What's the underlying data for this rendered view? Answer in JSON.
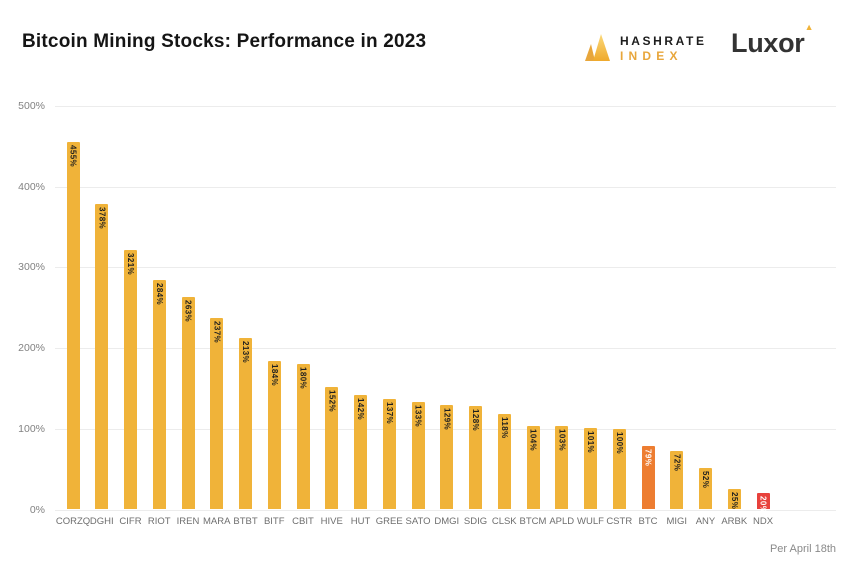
{
  "header": {
    "title": "Bitcoin Mining Stocks: Performance in 2023",
    "hashrate_logo": {
      "line1": "HASHRATE",
      "line2": "INDEX"
    },
    "luxor_logo": {
      "text": "Luxor",
      "triangle": "▲"
    }
  },
  "footer": {
    "note": "Per April 18th"
  },
  "chart_data": {
    "type": "bar",
    "title": "Bitcoin Mining Stocks: Performance in 2023",
    "categories": [
      "CORZQ",
      "DGHI",
      "CIFR",
      "RIOT",
      "IREN",
      "MARA",
      "BTBT",
      "BITF",
      "CBIT",
      "HIVE",
      "HUT",
      "GREE",
      "SATO",
      "DMGI",
      "SDIG",
      "CLSK",
      "BTCM",
      "APLD",
      "WULF",
      "CSTR",
      "BTC",
      "MIGI",
      "ANY",
      "ARBK",
      "NDX"
    ],
    "values": [
      455,
      378,
      321,
      284,
      263,
      237,
      213,
      184,
      180,
      152,
      142,
      137,
      133,
      129,
      128,
      118,
      104,
      103,
      101,
      100,
      79,
      72,
      52,
      25,
      20
    ],
    "data_labels": [
      "455%",
      "378%",
      "321%",
      "284%",
      "263%",
      "237%",
      "213%",
      "184%",
      "180%",
      "152%",
      "142%",
      "137%",
      "133%",
      "129%",
      "128%",
      "118%",
      "104%",
      "103%",
      "101%",
      "100%",
      "79%",
      "72%",
      "52%",
      "25%",
      "20%"
    ],
    "xlabel": "",
    "ylabel": "",
    "ylim": [
      0,
      500
    ],
    "yticks": [
      "0%",
      "100%",
      "200%",
      "300%",
      "400%",
      "500%"
    ],
    "ytick_values": [
      0,
      100,
      200,
      300,
      400,
      500
    ],
    "grid": true,
    "legend": false,
    "bar_colors": {
      "default": "#F0B339",
      "BTC": "#ED7D31",
      "NDX": "#E8413C"
    },
    "label_colors": {
      "default": "#1f1f1f",
      "BTC": "#ffffff",
      "NDX": "#ffffff"
    }
  }
}
